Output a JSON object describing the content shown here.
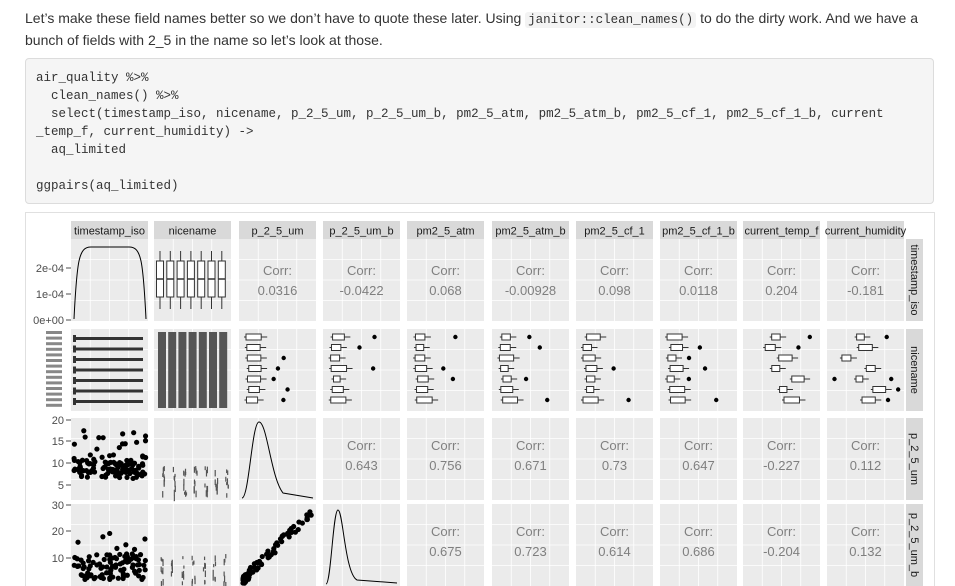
{
  "intro": {
    "text_before": "Let’s make these field names better so we don’t have to quote these later. Using ",
    "code": "janitor::clean_names()",
    "text_after": " to do the dirty work. And we have a bunch of fields with 2_5 in the name so let’s look at those."
  },
  "code_block": "air_quality %>%\n  clean_names() %>%\n  select(timestamp_iso, nicename, p_2_5_um, p_2_5_um_b, pm2_5_atm, pm2_5_atm_b, pm2_5_cf_1, pm2_5_cf_1_b, current\n_temp_f, current_humidity) ->\n  aq_limited\n\nggpairs(aq_limited)",
  "ggpairs": {
    "columns": [
      "timestamp_iso",
      "nicename",
      "p_2_5_um",
      "p_2_5_um_b",
      "pm2_5_atm",
      "pm2_5_atm_b",
      "pm2_5_cf_1",
      "pm2_5_cf_1_b",
      "current_temp_f",
      "current_humidity"
    ],
    "column_headers": [
      "timestamp_iso",
      "nicename",
      "p_2_5_um",
      "p_2_5_um_b",
      "pm2_5_atm",
      "pm2_5_atm_b",
      "pm2_5_cf_1",
      "pm2_5_cf_1_b",
      "current_temp_f",
      "current_humidity"
    ],
    "rows": [
      "timestamp_iso",
      "nicename",
      "p_2_5_um",
      "p_2_5_um_b"
    ],
    "row1_ticks": [
      "2e-04",
      "1e-04",
      "0e+00"
    ],
    "row3_ticks": [
      "20",
      "15",
      "10",
      "5"
    ],
    "row4_ticks": [
      "30",
      "20",
      "10"
    ],
    "corr_label": "Corr:",
    "corr_row1": [
      "0.0316",
      "-0.0422",
      "0.068",
      "-0.00928",
      "0.098",
      "0.0118",
      "0.204",
      "-0.181"
    ],
    "corr_row3": [
      "0.643",
      "0.756",
      "0.671",
      "0.73",
      "0.647",
      "-0.227",
      "0.112"
    ],
    "corr_row4": [
      "0.675",
      "0.723",
      "0.614",
      "0.686",
      "-0.204",
      "0.132"
    ],
    "colors": {
      "panel": "#ebebeb",
      "strip": "#d9d9d9",
      "grid": "#ffffff",
      "ink": "#000000",
      "corr_text": "#7f7f7f"
    }
  }
}
